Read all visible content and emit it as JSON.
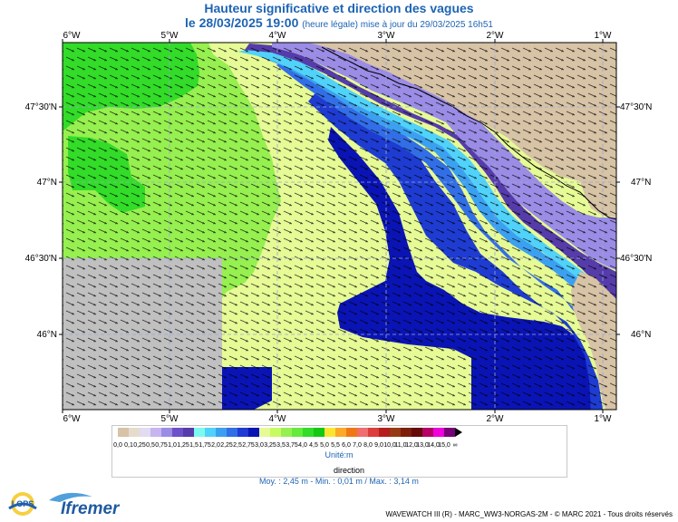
{
  "title": {
    "line1": "Hauteur significative et direction des vagues",
    "date": "le 28/03/2025 19:00",
    "subtitle": "(heure légale) mise à jour du 29/03/2025 16h51"
  },
  "map": {
    "lon_labels": [
      "6°W",
      "5°W",
      "4°W",
      "3°W",
      "2°W",
      "1°W"
    ],
    "lat_labels": [
      "47°30'N",
      "47°N",
      "46°30'N",
      "46°N"
    ]
  },
  "legend": {
    "scale_labels": [
      "0,0",
      "0,1",
      "0,25",
      "0,5",
      "0,75",
      "1,0",
      "1,25",
      "1,5",
      "1,75",
      "2,0",
      "2,25",
      "2,5",
      "2,75",
      "3,0",
      "3,25",
      "3,5",
      "3,75",
      "4,0",
      "4,5",
      "5,0",
      "5,5",
      "6,0",
      "7,0",
      "8,0",
      "9,0",
      "10,0",
      "11,0",
      "12,0",
      "13,0",
      "14,0",
      "15,0",
      "∞"
    ],
    "colors": [
      "#d7c3a5",
      "#e6dccd",
      "#e1dcf0",
      "#c8b4f0",
      "#9b8ce6",
      "#6e50c8",
      "#553caa",
      "#7dfaf0",
      "#50d2fa",
      "#3ca0f0",
      "#326ee6",
      "#1e3cd2",
      "#0a14b4",
      "#e6fa96",
      "#c8fa64",
      "#96f050",
      "#64eb3c",
      "#32dc28",
      "#14c814",
      "#fae632",
      "#faaa28",
      "#f07814",
      "#f06e6e",
      "#dc3c3c",
      "#b41e1e",
      "#963c14",
      "#7d1e0a",
      "#640a0a",
      "#b40064",
      "#f000dc",
      "#780078"
    ],
    "unit": "Unité:m",
    "direction_label": "direction",
    "stats": "Moy. : 2,45 m   -   Min. : 0,01 m / Max. : 3,14 m"
  },
  "footer": "WAVEWATCH III (R) - MARC_WW3-NORGAS-2M - © MARC 2021 - Tous droits réservés",
  "logos": {
    "lops": "LOPS",
    "ifremer": "Ifremer"
  }
}
